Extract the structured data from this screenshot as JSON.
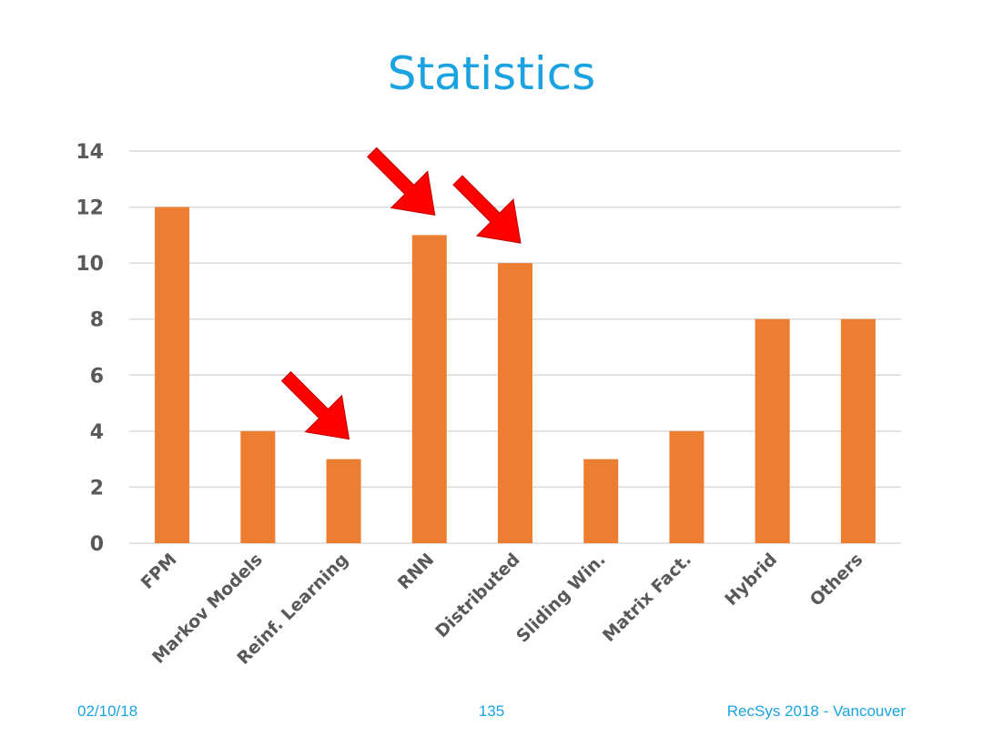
{
  "slide": {
    "title": "Statistics",
    "footer": {
      "date": "02/10/18",
      "page_number": "135",
      "event": "RecSys 2018 - Vancouver"
    }
  },
  "colors": {
    "title": "#1aa3e0",
    "bars": "#ed7d31",
    "arrows": "#ff0000",
    "gridlines": "#d9d9d9",
    "tick_labels": "#595959"
  },
  "chart_data": {
    "type": "bar",
    "categories": [
      "FPM",
      "Markov Models",
      "Reinf. Learning",
      "RNN",
      "Distributed",
      "Sliding Win.",
      "Matrix Fact.",
      "Hybrid",
      "Others"
    ],
    "values": [
      12,
      4,
      3,
      11,
      10,
      3,
      4,
      8,
      8
    ],
    "ylim": [
      0,
      14
    ],
    "yticks": [
      0,
      2,
      4,
      6,
      8,
      10,
      12,
      14
    ],
    "grid": true,
    "legend": "none",
    "annotations": [
      {
        "type": "arrow",
        "category": "Reinf. Learning",
        "color": "red"
      },
      {
        "type": "arrow",
        "category": "RNN",
        "color": "red"
      },
      {
        "type": "arrow",
        "category": "Distributed",
        "color": "red"
      }
    ]
  }
}
